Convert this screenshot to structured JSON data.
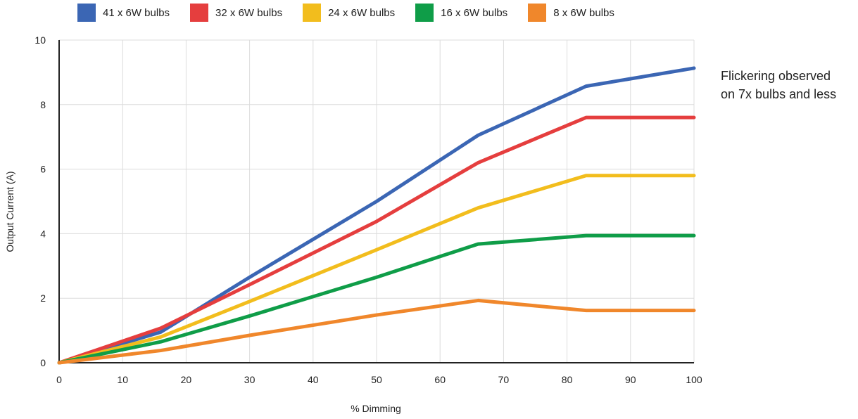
{
  "chart_data": {
    "type": "line",
    "title": "",
    "xlabel": "% Dimming",
    "ylabel": "Output Current (A)",
    "xlim": [
      0,
      100
    ],
    "ylim": [
      0,
      10
    ],
    "xticks": [
      0,
      10,
      20,
      30,
      40,
      50,
      60,
      70,
      80,
      90,
      100
    ],
    "yticks": [
      0,
      2,
      4,
      6,
      8,
      10
    ],
    "grid": true,
    "legend_position": "top",
    "series": [
      {
        "name": "41 x 6W bulbs",
        "color": "#3b66b4",
        "x": [
          0,
          16,
          30,
          50,
          66,
          83,
          100
        ],
        "y": [
          0,
          0.95,
          2.65,
          5.0,
          7.05,
          8.57,
          9.13
        ]
      },
      {
        "name": "32 x 6W bulbs",
        "color": "#e53e3e",
        "x": [
          0,
          16,
          30,
          50,
          66,
          83,
          100
        ],
        "y": [
          0,
          1.07,
          2.42,
          4.38,
          6.2,
          7.6,
          7.6
        ]
      },
      {
        "name": "24 x 6W bulbs",
        "color": "#f2bd1d",
        "x": [
          0,
          16,
          30,
          50,
          66,
          83,
          100
        ],
        "y": [
          0,
          0.8,
          1.9,
          3.5,
          4.8,
          5.8,
          5.8
        ]
      },
      {
        "name": "16 x 6W bulbs",
        "color": "#0f9d48",
        "x": [
          0,
          16,
          30,
          50,
          66,
          83,
          100
        ],
        "y": [
          0,
          0.65,
          1.45,
          2.65,
          3.68,
          3.94,
          3.94
        ]
      },
      {
        "name": "8 x 6W bulbs",
        "color": "#f0872b",
        "x": [
          0,
          16,
          30,
          50,
          66,
          83,
          100
        ],
        "y": [
          0,
          0.38,
          0.85,
          1.48,
          1.93,
          1.62,
          1.62
        ]
      }
    ],
    "annotations": [
      "Flickering observed",
      "on 7x bulbs and less"
    ]
  }
}
